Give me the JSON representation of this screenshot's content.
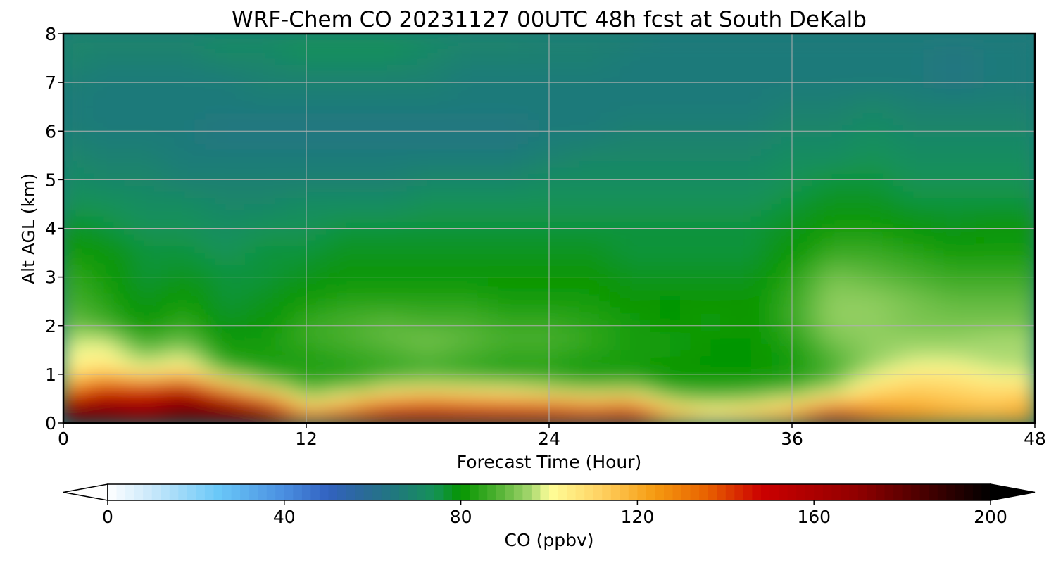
{
  "chart_data": {
    "type": "heatmap",
    "title": "WRF-Chem CO  20231127 00UTC 48h fcst at South DeKalb",
    "xlabel": "Forecast Time (Hour)",
    "ylabel": "Alt AGL (km)",
    "xlim": [
      0,
      48
    ],
    "ylim": [
      0,
      8
    ],
    "xticks": [
      0,
      12,
      24,
      36,
      48
    ],
    "yticks": [
      0,
      1,
      2,
      3,
      4,
      5,
      6,
      7,
      8
    ],
    "grid": true,
    "x": [
      0,
      2,
      4,
      6,
      8,
      10,
      12,
      14,
      16,
      18,
      20,
      22,
      24,
      26,
      28,
      30,
      32,
      34,
      36,
      38,
      40,
      42,
      44,
      46,
      48
    ],
    "y": [
      0,
      0.25,
      0.5,
      0.75,
      1,
      1.25,
      1.5,
      1.75,
      2,
      2.5,
      3,
      3.5,
      4,
      4.5,
      5,
      5.5,
      6,
      6.5,
      7,
      7.5,
      8
    ],
    "z_rows": [
      [
        190,
        190,
        182,
        194,
        190,
        178,
        160,
        170,
        166,
        164,
        160,
        158,
        158,
        156,
        160,
        128,
        116,
        120,
        134,
        176,
        148,
        136,
        128,
        126,
        130
      ],
      [
        176,
        172,
        164,
        176,
        170,
        168,
        118,
        132,
        150,
        154,
        152,
        150,
        150,
        144,
        150,
        116,
        104,
        110,
        118,
        140,
        126,
        122,
        118,
        116,
        120
      ],
      [
        150,
        160,
        156,
        166,
        158,
        132,
        96,
        106,
        120,
        124,
        120,
        118,
        114,
        108,
        112,
        92,
        90,
        92,
        96,
        108,
        114,
        116,
        114,
        112,
        116
      ],
      [
        120,
        140,
        142,
        152,
        118,
        96,
        86,
        88,
        94,
        98,
        96,
        94,
        92,
        88,
        90,
        84,
        84,
        84,
        86,
        92,
        108,
        112,
        110,
        108,
        108
      ],
      [
        106,
        116,
        106,
        112,
        92,
        86,
        84,
        84,
        86,
        88,
        86,
        84,
        84,
        82,
        82,
        80,
        80,
        80,
        82,
        88,
        98,
        106,
        106,
        100,
        98
      ],
      [
        102,
        104,
        96,
        102,
        84,
        82,
        82,
        84,
        86,
        88,
        86,
        84,
        84,
        82,
        82,
        80,
        80,
        80,
        82,
        88,
        94,
        98,
        98,
        96,
        96
      ],
      [
        98,
        102,
        90,
        94,
        82,
        82,
        84,
        86,
        88,
        90,
        88,
        86,
        86,
        84,
        82,
        82,
        80,
        80,
        82,
        90,
        94,
        96,
        96,
        96,
        96
      ],
      [
        96,
        96,
        86,
        90,
        80,
        82,
        86,
        88,
        90,
        92,
        90,
        88,
        88,
        86,
        82,
        82,
        80,
        80,
        84,
        92,
        94,
        94,
        94,
        96,
        96
      ],
      [
        92,
        88,
        80,
        86,
        78,
        80,
        86,
        88,
        90,
        88,
        88,
        86,
        86,
        84,
        82,
        80,
        82,
        80,
        86,
        94,
        94,
        92,
        92,
        92,
        92
      ],
      [
        88,
        84,
        78,
        82,
        76,
        78,
        82,
        84,
        84,
        84,
        84,
        82,
        82,
        82,
        80,
        80,
        80,
        80,
        86,
        94,
        94,
        92,
        90,
        90,
        90
      ],
      [
        86,
        82,
        76,
        78,
        76,
        76,
        78,
        80,
        80,
        80,
        80,
        80,
        80,
        80,
        78,
        78,
        78,
        78,
        84,
        92,
        90,
        88,
        86,
        86,
        86
      ],
      [
        82,
        80,
        76,
        76,
        74,
        76,
        76,
        78,
        78,
        78,
        78,
        78,
        78,
        78,
        76,
        76,
        76,
        76,
        80,
        86,
        86,
        84,
        82,
        82,
        82
      ],
      [
        78,
        76,
        74,
        74,
        72,
        74,
        74,
        76,
        76,
        76,
        76,
        76,
        76,
        76,
        76,
        76,
        76,
        76,
        78,
        82,
        82,
        80,
        78,
        80,
        80
      ],
      [
        74,
        74,
        72,
        72,
        70,
        70,
        72,
        72,
        72,
        74,
        74,
        74,
        74,
        74,
        74,
        74,
        74,
        74,
        76,
        78,
        78,
        76,
        76,
        76,
        76
      ],
      [
        72,
        70,
        70,
        68,
        68,
        68,
        68,
        68,
        68,
        70,
        70,
        70,
        72,
        72,
        72,
        72,
        72,
        72,
        74,
        76,
        76,
        74,
        74,
        74,
        74
      ],
      [
        70,
        68,
        68,
        66,
        66,
        66,
        66,
        66,
        66,
        66,
        66,
        66,
        68,
        70,
        70,
        70,
        70,
        70,
        72,
        72,
        74,
        72,
        72,
        72,
        72
      ],
      [
        68,
        66,
        66,
        66,
        64,
        64,
        64,
        64,
        64,
        64,
        64,
        64,
        66,
        66,
        68,
        68,
        68,
        68,
        70,
        70,
        72,
        70,
        70,
        70,
        70
      ],
      [
        66,
        66,
        66,
        66,
        66,
        66,
        66,
        66,
        66,
        66,
        66,
        66,
        66,
        66,
        66,
        66,
        66,
        66,
        68,
        68,
        70,
        68,
        68,
        68,
        68
      ],
      [
        68,
        66,
        66,
        66,
        66,
        68,
        68,
        68,
        68,
        68,
        66,
        66,
        66,
        66,
        66,
        66,
        66,
        66,
        66,
        66,
        66,
        66,
        64,
        66,
        66
      ],
      [
        70,
        68,
        68,
        68,
        70,
        70,
        72,
        72,
        72,
        70,
        68,
        68,
        68,
        68,
        66,
        66,
        66,
        66,
        66,
        66,
        66,
        66,
        64,
        66,
        66
      ],
      [
        70,
        70,
        70,
        70,
        72,
        72,
        74,
        74,
        74,
        72,
        70,
        70,
        68,
        68,
        68,
        66,
        66,
        66,
        66,
        66,
        66,
        66,
        66,
        66,
        66
      ]
    ],
    "colorbar": {
      "label": "CO  (ppbv)",
      "vmin": 0,
      "vmax": 200,
      "ticks": [
        0,
        40,
        80,
        120,
        160,
        200
      ],
      "extend": "both",
      "stops": [
        {
          "v": 0,
          "color": "#ffffff"
        },
        {
          "v": 10,
          "color": "#c8e8fa"
        },
        {
          "v": 25,
          "color": "#6ac8f8"
        },
        {
          "v": 40,
          "color": "#4a8ee0"
        },
        {
          "v": 50,
          "color": "#3262c0"
        },
        {
          "v": 58,
          "color": "#2a6a98"
        },
        {
          "v": 66,
          "color": "#1f7a7a"
        },
        {
          "v": 74,
          "color": "#159258"
        },
        {
          "v": 80,
          "color": "#059600"
        },
        {
          "v": 88,
          "color": "#4cb030"
        },
        {
          "v": 96,
          "color": "#a8d870"
        },
        {
          "v": 100,
          "color": "#ffff99"
        },
        {
          "v": 112,
          "color": "#ffd060"
        },
        {
          "v": 124,
          "color": "#f59a10"
        },
        {
          "v": 136,
          "color": "#e86000"
        },
        {
          "v": 148,
          "color": "#cc0000"
        },
        {
          "v": 170,
          "color": "#900000"
        },
        {
          "v": 190,
          "color": "#300000"
        },
        {
          "v": 200,
          "color": "#000000"
        }
      ]
    }
  }
}
